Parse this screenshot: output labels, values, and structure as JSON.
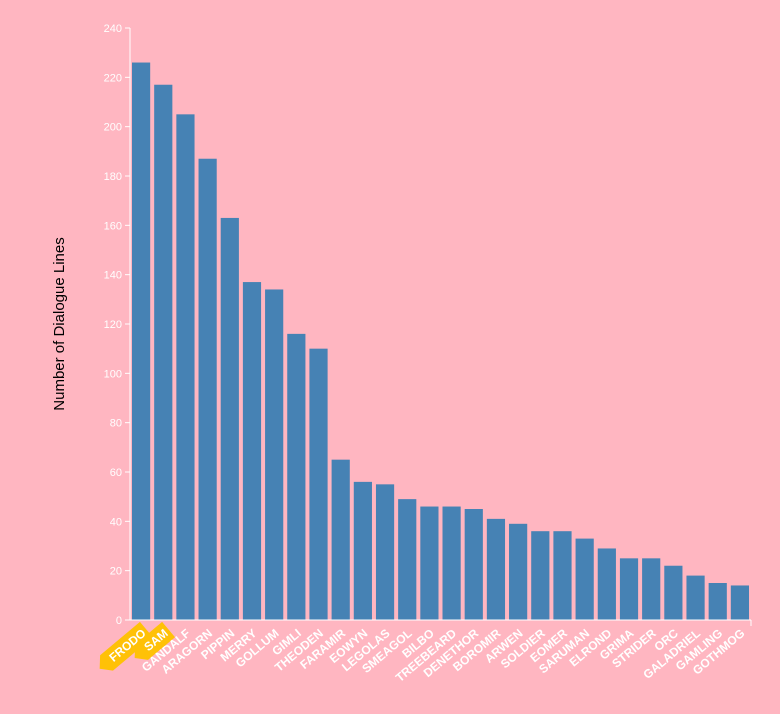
{
  "colors": {
    "background": "#ffb6c1",
    "bar": "#4682b4",
    "axis": "#ffffff",
    "tick_text": "#ffffff",
    "highlight_tag": "#ffc107",
    "highlight_text": "#ffea00"
  },
  "chart_data": {
    "type": "bar",
    "title": "",
    "xlabel": "",
    "ylabel": "Number of Dialogue Lines",
    "ylim": [
      0,
      240
    ],
    "yticks": [
      0,
      20,
      40,
      60,
      80,
      100,
      120,
      140,
      160,
      180,
      200,
      220,
      240
    ],
    "grid": false,
    "categories": [
      "FRODO",
      "SAM",
      "GANDALF",
      "ARAGORN",
      "PIPPIN",
      "MERRY",
      "GOLLUM",
      "GIMLI",
      "THEODEN",
      "FARAMIR",
      "EOWYN",
      "LEGOLAS",
      "SMEAGOL",
      "BILBO",
      "TREEBEARD",
      "DENETHOR",
      "BOROMIR",
      "ARWEN",
      "SOLDIER",
      "EOMER",
      "SARUMAN",
      "ELROND",
      "GRIMA",
      "STRIDER",
      "ORC",
      "GALADRIEL",
      "GAMLING",
      "GOTHMOG"
    ],
    "values": [
      226,
      217,
      205,
      187,
      163,
      137,
      134,
      116,
      110,
      65,
      56,
      55,
      49,
      46,
      46,
      45,
      41,
      39,
      36,
      36,
      33,
      29,
      25,
      25,
      22,
      18,
      15,
      14
    ],
    "highlighted": [
      "FRODO",
      "SAM"
    ]
  }
}
